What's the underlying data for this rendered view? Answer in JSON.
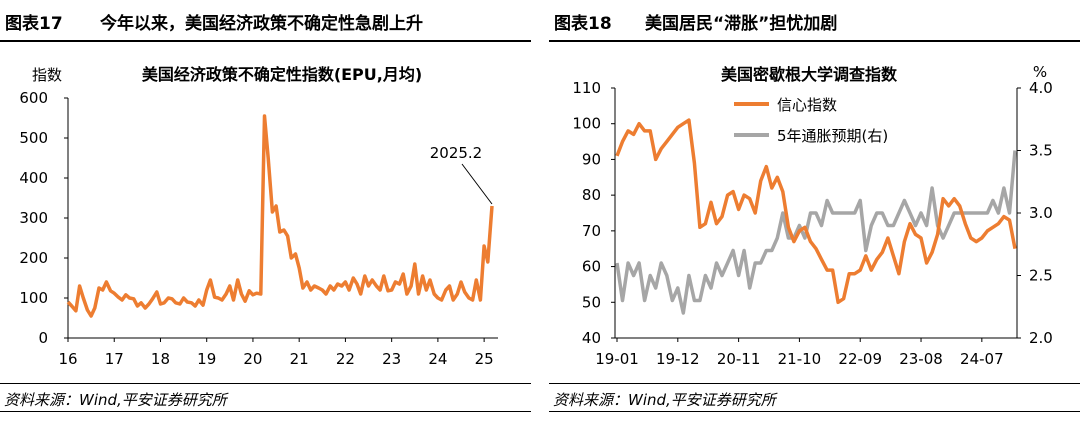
{
  "left": {
    "fig_label": "图表17",
    "header_title": "今年以来，美国经济政策不确定性急剧上升",
    "source": "资料来源：Wind,平安证券研究所",
    "chart_data": {
      "type": "line",
      "title": "美国经济政策不确定性指数(EPU,月均)",
      "ylabel": "指数",
      "ylim": [
        0,
        600
      ],
      "yticks": [
        "0",
        "100",
        "200",
        "300",
        "400",
        "500",
        "600"
      ],
      "xlim": [
        2016,
        2025.3
      ],
      "xticks": [
        "16",
        "17",
        "18",
        "19",
        "20",
        "21",
        "22",
        "23",
        "24",
        "25"
      ],
      "annotation": "2025.2",
      "color": "#ED7D31",
      "series": [
        {
          "x": [
            2016.0,
            2016.08,
            2016.17,
            2016.25,
            2016.33,
            2016.42,
            2016.5,
            2016.58,
            2016.67,
            2016.75,
            2016.83,
            2016.92,
            2017.0,
            2017.08,
            2017.17,
            2017.25,
            2017.33,
            2017.42,
            2017.5,
            2017.58,
            2017.67,
            2017.75,
            2017.83,
            2017.92,
            2018.0,
            2018.08,
            2018.17,
            2018.25,
            2018.33,
            2018.42,
            2018.5,
            2018.58,
            2018.67,
            2018.75,
            2018.83,
            2018.92,
            2019.0,
            2019.08,
            2019.17,
            2019.25,
            2019.33,
            2019.42,
            2019.5,
            2019.58,
            2019.67,
            2019.75,
            2019.83,
            2019.92,
            2020.0,
            2020.08,
            2020.17,
            2020.25,
            2020.33,
            2020.42,
            2020.5,
            2020.58,
            2020.67,
            2020.75,
            2020.83,
            2020.92,
            2021.0,
            2021.08,
            2021.17,
            2021.25,
            2021.33,
            2021.42,
            2021.5,
            2021.58,
            2021.67,
            2021.75,
            2021.83,
            2021.92,
            2022.0,
            2022.08,
            2022.17,
            2022.25,
            2022.33,
            2022.42,
            2022.5,
            2022.58,
            2022.67,
            2022.75,
            2022.83,
            2022.92,
            2023.0,
            2023.08,
            2023.17,
            2023.25,
            2023.33,
            2023.42,
            2023.5,
            2023.58,
            2023.67,
            2023.75,
            2023.83,
            2023.92,
            2024.0,
            2024.08,
            2024.17,
            2024.25,
            2024.33,
            2024.42,
            2024.5,
            2024.58,
            2024.67,
            2024.75,
            2024.83,
            2024.92,
            2025.0,
            2025.08,
            2025.17
          ],
          "values": [
            90,
            80,
            68,
            130,
            100,
            70,
            55,
            75,
            125,
            120,
            140,
            118,
            112,
            103,
            95,
            108,
            100,
            98,
            80,
            88,
            75,
            85,
            98,
            115,
            85,
            88,
            100,
            98,
            88,
            85,
            100,
            90,
            88,
            80,
            95,
            82,
            120,
            145,
            102,
            100,
            95,
            110,
            130,
            95,
            145,
            110,
            92,
            118,
            108,
            112,
            110,
            555,
            450,
            315,
            330,
            265,
            270,
            255,
            200,
            210,
            175,
            125,
            140,
            120,
            130,
            125,
            120,
            110,
            130,
            120,
            135,
            130,
            140,
            120,
            150,
            135,
            110,
            155,
            130,
            145,
            130,
            120,
            155,
            118,
            120,
            140,
            135,
            160,
            110,
            130,
            185,
            110,
            155,
            120,
            145,
            110,
            100,
            95,
            120,
            130,
            95,
            110,
            140,
            115,
            100,
            95,
            145,
            95,
            230,
            190,
            330
          ]
        }
      ]
    }
  },
  "right": {
    "fig_label": "图表18",
    "header_title": "美国居民“滞胀”担忧加剧",
    "source": "资料来源：Wind,平安证券研究所",
    "chart_data": {
      "type": "line",
      "title": "美国密歇根大学调查指数",
      "ylabel_right": "%",
      "ylim": [
        40,
        110
      ],
      "yticks": [
        "40",
        "50",
        "60",
        "70",
        "80",
        "90",
        "100",
        "110"
      ],
      "ylim_right": [
        2.0,
        4.0
      ],
      "yticks_right": [
        "2.0",
        "2.5",
        "3.0",
        "3.5",
        "4.0"
      ],
      "xticks": [
        "19-01",
        "19-12",
        "20-11",
        "21-10",
        "22-09",
        "23-08",
        "24-07"
      ],
      "legend_position": "top-center",
      "series": [
        {
          "name": "信心指数",
          "axis": "left",
          "color": "#ED7D31",
          "values": [
            91,
            95,
            98,
            97,
            100,
            98,
            98,
            90,
            93,
            95,
            97,
            99,
            100,
            101,
            89,
            71,
            72,
            78,
            72,
            74,
            80,
            81,
            76,
            80,
            79,
            75,
            84,
            88,
            82,
            85,
            81,
            71,
            67,
            70,
            71,
            67,
            65,
            62,
            59,
            59,
            50,
            51,
            58,
            58,
            59,
            63,
            59,
            62,
            64,
            68,
            63,
            58,
            67,
            72,
            69,
            68,
            61,
            64,
            69,
            79,
            77,
            79,
            77,
            72,
            68,
            67,
            68,
            70,
            71,
            72,
            74,
            73,
            65
          ]
        },
        {
          "name": "5年通胀预期(右)",
          "axis": "right",
          "color": "#A6A6A6",
          "values": [
            2.6,
            2.3,
            2.6,
            2.5,
            2.6,
            2.3,
            2.5,
            2.4,
            2.6,
            2.5,
            2.3,
            2.4,
            2.2,
            2.5,
            2.3,
            2.3,
            2.5,
            2.4,
            2.6,
            2.5,
            2.6,
            2.7,
            2.5,
            2.7,
            2.4,
            2.6,
            2.6,
            2.7,
            2.7,
            2.8,
            3.0,
            2.8,
            2.8,
            2.9,
            2.8,
            3.0,
            3.0,
            2.9,
            3.1,
            3.0,
            3.0,
            3.0,
            3.0,
            3.0,
            3.1,
            2.7,
            2.9,
            3.0,
            3.0,
            2.9,
            2.9,
            3.0,
            3.1,
            3.0,
            2.9,
            3.0,
            2.9,
            3.2,
            2.9,
            2.8,
            2.9,
            3.0,
            3.0,
            3.0,
            3.0,
            3.0,
            3.0,
            3.0,
            3.1,
            3.0,
            3.2,
            3.0,
            3.5
          ]
        }
      ]
    }
  }
}
